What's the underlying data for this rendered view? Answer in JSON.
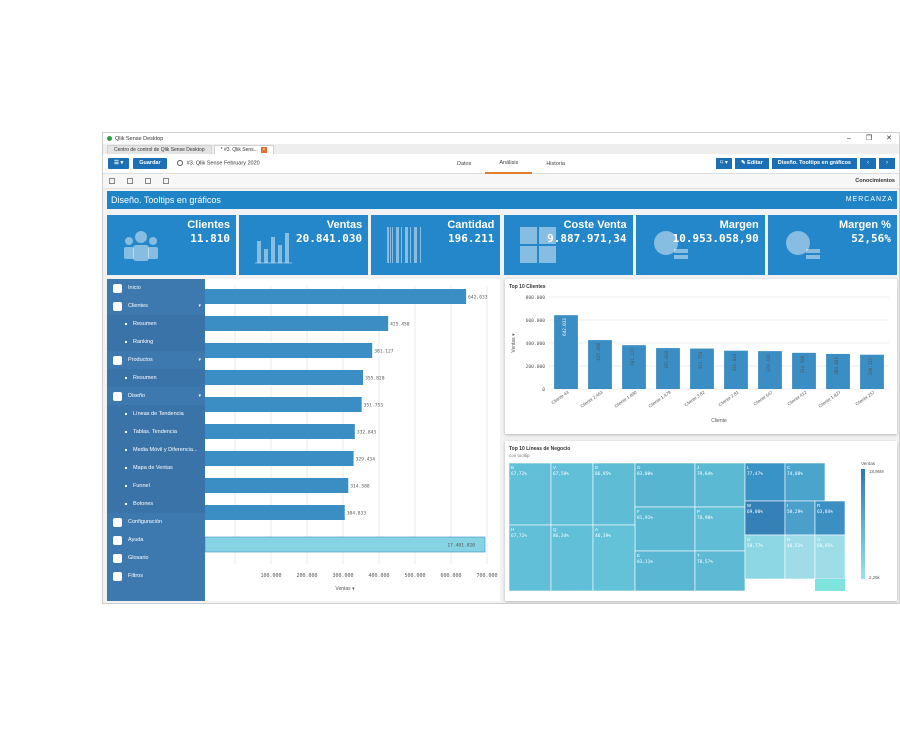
{
  "window": {
    "title": "Qlik Sense Desktop",
    "controls": [
      "–",
      "❐",
      "✕"
    ]
  },
  "tabs": [
    {
      "label": "Centro de control de Qlik Sense Desktop"
    },
    {
      "label": "* #3. Qlik Sens...",
      "close": "×"
    }
  ],
  "toolbar": {
    "menu_label": "☰ ▾",
    "save_label": "Guardar",
    "app_name": "#3. Qlik Sense February 2020",
    "nav": [
      "Datos",
      "Análisis",
      "Historia"
    ],
    "bookmark_label": "⌑ ▾",
    "edit_label": "✎ Editar",
    "sheet_name": "Diseño. Tooltips en gráficos",
    "prev": "‹",
    "next": "›"
  },
  "subtoolbar": {
    "insights": "Conocimientos"
  },
  "sheet": {
    "title": "Diseño. Tooltips en gráficos",
    "brand": "MERCANZA"
  },
  "kpis": [
    {
      "label": "Clientes",
      "value": "11.810",
      "icon": "people-icon"
    },
    {
      "label": "Ventas",
      "value": "20.841.030",
      "icon": "bar-chart-icon"
    },
    {
      "label": "Cantidad",
      "value": "196.211",
      "icon": "barcode-icon"
    },
    {
      "label": "Coste Venta",
      "value": "9.887.971,34",
      "icon": "calculator-icon"
    },
    {
      "label": "Margen",
      "value": "10.953.058,90",
      "icon": "coins-icon"
    },
    {
      "label": "Margen %",
      "value": "52,56%",
      "icon": "coins-icon"
    }
  ],
  "sidebar": [
    {
      "type": "item",
      "label": "Inicio",
      "icon": "home-icon"
    },
    {
      "type": "item",
      "label": "Clientes",
      "icon": "user-icon",
      "chevron": "▾"
    },
    {
      "type": "sub",
      "label": "Resumen"
    },
    {
      "type": "sub",
      "label": "Ranking"
    },
    {
      "type": "item",
      "label": "Productos",
      "icon": "tag-icon",
      "chevron": "▾"
    },
    {
      "type": "sub",
      "label": "Resumen"
    },
    {
      "type": "item",
      "label": "Diseño",
      "icon": "brush-icon",
      "chevron": "▾"
    },
    {
      "type": "sub",
      "label": "Líneas de Tendencia"
    },
    {
      "type": "sub",
      "label": "Tablas. Tendencia"
    },
    {
      "type": "sub",
      "label": "Media Móvil y Diferencia..."
    },
    {
      "type": "sub",
      "label": "Mapa de Ventas"
    },
    {
      "type": "sub",
      "label": "Funnel"
    },
    {
      "type": "sub",
      "label": "Botones"
    },
    {
      "type": "item",
      "label": "Configuración",
      "icon": "gears-icon"
    },
    {
      "type": "item",
      "label": "Ayuda",
      "icon": "help-icon"
    },
    {
      "type": "item",
      "label": "Glosario",
      "icon": "info-icon"
    },
    {
      "type": "item",
      "label": "Filtros",
      "icon": "filter-icon"
    }
  ],
  "chart_data": [
    {
      "type": "bar",
      "orientation": "horizontal",
      "values": [
        642.033,
        425.45,
        381.127,
        355.82,
        351.753,
        332.843,
        329.434,
        314.588,
        304.833,
        17401.82
      ],
      "labels": [
        "642.033",
        "425.450",
        "381.127",
        "355.820",
        "351.753",
        "332.843",
        "329.434",
        "314.588",
        "304.833",
        "17.401.820"
      ],
      "xticks": [
        "100.000",
        "200.000",
        "300.000",
        "400.000",
        "500.000",
        "600.000",
        "700.000"
      ],
      "xlim": [
        0,
        700000
      ],
      "xlabel": "Ventas ▾",
      "grid": true
    },
    {
      "type": "bar",
      "title": "Top 10 Clientes",
      "categories": [
        "Cliente 43",
        "Cliente 2.463",
        "Cliente 1.890",
        "Cliente 1.479",
        "Cliente 3.82",
        "Cliente 2.81",
        "Cliente 547",
        "Cliente 412",
        "Cliente 1.827",
        "Cliente 257"
      ],
      "values": [
        642.033,
        425.45,
        381.127,
        355.82,
        351.753,
        332.843,
        329.434,
        314.588,
        304.833,
        298.117
      ],
      "labels": [
        "642.033",
        "425.450",
        "381.127",
        "355.820",
        "351.753",
        "332.843",
        "329.434",
        "314.588",
        "304.833",
        "298.117"
      ],
      "yticks": [
        "800.000",
        "600.000",
        "400.000",
        "200.000",
        "0"
      ],
      "ylim": [
        0,
        800000
      ],
      "xlabel": "Cliente",
      "ylabel": "Ventas ▾",
      "grid": true
    },
    {
      "type": "heatmap",
      "title": "Top 10 Líneas de Negocio",
      "subtitle": "con tooltip",
      "legend_title": "Ventas",
      "legend_max": "18,96M",
      "legend_min": "2,25k",
      "cells": [
        {
          "label": "B",
          "value": "67,72%"
        },
        {
          "label": "V",
          "value": "67,58%"
        },
        {
          "label": "D",
          "value": "86,95%"
        },
        {
          "label": "G",
          "value": "83,00%"
        },
        {
          "label": "J",
          "value": "79,64%"
        },
        {
          "label": "L",
          "value": "77,47%"
        },
        {
          "label": "C",
          "value": "74,08%"
        },
        {
          "label": "F",
          "value": "81,91%"
        },
        {
          "label": "P",
          "value": "78,90%"
        },
        {
          "label": "W",
          "value": "69,00%"
        },
        {
          "label": "I",
          "value": "58,29%"
        },
        {
          "label": "R",
          "value": "63,84%"
        },
        {
          "label": "H",
          "value": "67,72%"
        },
        {
          "label": "Q",
          "value": "86,34%"
        },
        {
          "label": "A",
          "value": "46,39%"
        },
        {
          "label": "E",
          "value": "83,11%"
        },
        {
          "label": "T",
          "value": "78,57%"
        },
        {
          "label": "U",
          "value": "58,77%"
        },
        {
          "label": "N",
          "value": "48,51%"
        },
        {
          "label": "O",
          "value": "60,95%"
        }
      ]
    }
  ]
}
